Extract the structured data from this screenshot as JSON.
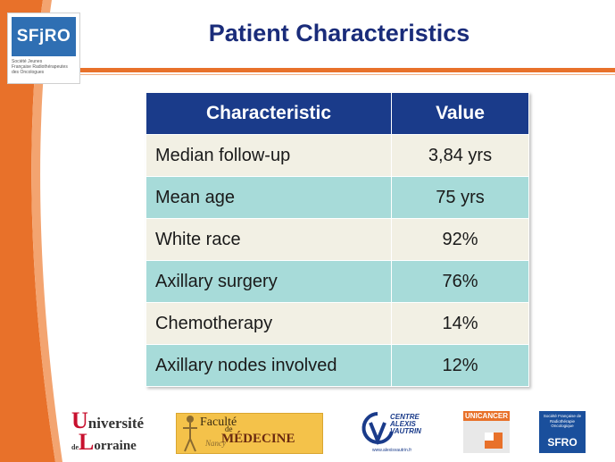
{
  "slide": {
    "title": "Patient Characteristics"
  },
  "logo_sfjro": {
    "name": "SFjRO",
    "subtitle": [
      "Société Jeunes",
      "Française Radiothérapeutes",
      "des Oncologues"
    ]
  },
  "table": {
    "headers": [
      "Characteristic",
      "Value"
    ],
    "rows": [
      [
        "Median follow-up",
        "3,84 yrs"
      ],
      [
        "Mean age",
        "75 yrs"
      ],
      [
        "White race",
        "92%"
      ],
      [
        "Axillary surgery",
        "76%"
      ],
      [
        "Chemotherapy",
        "14%"
      ],
      [
        "Axillary nodes involved",
        "12%"
      ]
    ]
  },
  "footer_logos": {
    "universite": {
      "line1": "niversité",
      "line2": "orraine",
      "u": "U",
      "de": "de",
      "l": "L"
    },
    "faculte": {
      "line1": "Faculté",
      "de": "de",
      "line2": "MÉDECINE",
      "city": "Nancy"
    },
    "centre": {
      "text": "CENTRE ALEXIS VAUTRIN",
      "url": "www.alexisvautrin.fr"
    },
    "unicancer": {
      "text": "UNICANCER"
    },
    "sfro": {
      "small": "Société Française de Radiothérapie Oncologique",
      "name": "SFRO"
    }
  },
  "colors": {
    "orange": "#e8712a",
    "header_blue": "#1a3b8a",
    "row_light": "#f2f0e4",
    "row_teal": "#a7dbd9",
    "title_blue": "#1a2c7a"
  }
}
